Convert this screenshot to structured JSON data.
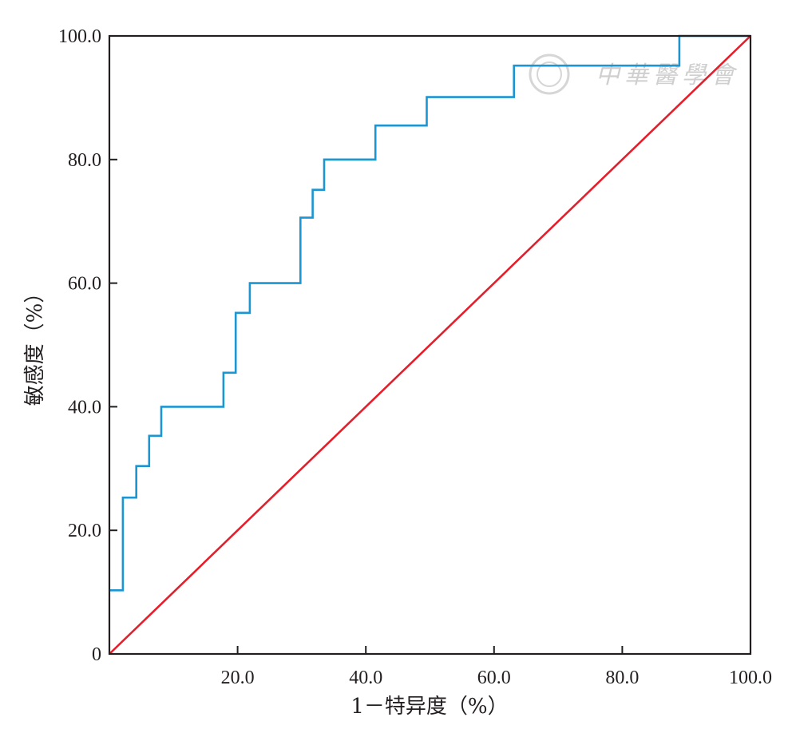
{
  "chart_data": {
    "type": "line",
    "title": "",
    "xlabel": "1－特异度（%）",
    "ylabel": "敏感度（%）",
    "xlim": [
      0,
      100
    ],
    "ylim": [
      0,
      100
    ],
    "x_ticks": [
      0,
      20,
      40,
      60,
      80,
      100
    ],
    "x_tick_labels": [
      "",
      "20.0",
      "40.0",
      "60.0",
      "80.0",
      "100.0"
    ],
    "y_ticks": [
      0,
      20,
      40,
      60,
      80,
      100
    ],
    "y_tick_labels": [
      "0",
      "20.0",
      "40.0",
      "60.0",
      "80.0",
      "100.0"
    ],
    "grid": false,
    "series": [
      {
        "color": "#1b96d2",
        "step": true,
        "points": [
          [
            0,
            10.3
          ],
          [
            2.1,
            10.3
          ],
          [
            2.1,
            25.3
          ],
          [
            4.2,
            25.3
          ],
          [
            4.2,
            30.4
          ],
          [
            6.2,
            30.4
          ],
          [
            6.2,
            35.3
          ],
          [
            8.1,
            35.3
          ],
          [
            8.1,
            40.0
          ],
          [
            17.8,
            40.0
          ],
          [
            17.8,
            45.5
          ],
          [
            19.7,
            45.5
          ],
          [
            19.7,
            55.2
          ],
          [
            21.9,
            55.2
          ],
          [
            21.9,
            60.0
          ],
          [
            29.8,
            60.0
          ],
          [
            29.8,
            70.6
          ],
          [
            31.7,
            70.6
          ],
          [
            31.7,
            75.1
          ],
          [
            33.5,
            75.1
          ],
          [
            33.5,
            80.0
          ],
          [
            41.5,
            80.0
          ],
          [
            41.5,
            85.5
          ],
          [
            49.5,
            85.5
          ],
          [
            49.5,
            90.1
          ],
          [
            63.1,
            90.1
          ],
          [
            63.1,
            95.2
          ],
          [
            88.9,
            95.2
          ],
          [
            88.9,
            100
          ],
          [
            100,
            100
          ]
        ]
      },
      {
        "color": "#e41e2b",
        "step": false,
        "points": [
          [
            0,
            0
          ],
          [
            100,
            100
          ]
        ]
      }
    ]
  },
  "watermark": {
    "text": "中華醫學會"
  }
}
